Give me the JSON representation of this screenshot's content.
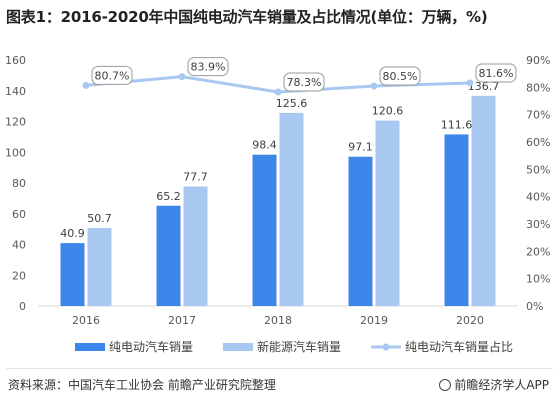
{
  "title": "图表1：2016-2020年中国纯电动汽车销量及占比情况(单位：万辆，%)",
  "chart_data": {
    "type": "bar",
    "categories": [
      "2016",
      "2017",
      "2018",
      "2019",
      "2020"
    ],
    "series": [
      {
        "name": "纯电动汽车销量",
        "kind": "bar",
        "axis": "left",
        "color": "#3b86e8",
        "values": [
          40.9,
          65.2,
          98.4,
          97.1,
          111.6
        ]
      },
      {
        "name": "新能源汽车销量",
        "kind": "bar",
        "axis": "left",
        "color": "#a9c8f1",
        "values": [
          50.7,
          77.7,
          125.6,
          120.6,
          136.7
        ]
      },
      {
        "name": "纯电动汽车销量占比",
        "kind": "line",
        "axis": "right",
        "color": "#a9c8f1",
        "values": [
          80.7,
          83.9,
          78.3,
          80.5,
          81.6
        ],
        "labels": [
          "80.7%",
          "83.9%",
          "78.3%",
          "80.5%",
          "81.6%"
        ]
      }
    ],
    "y_left": {
      "min": 0,
      "max": 160,
      "ticks": [
        "0",
        "20",
        "40",
        "60",
        "80",
        "100",
        "120",
        "140",
        "160"
      ]
    },
    "y_right": {
      "min": 0,
      "max": 90,
      "ticks": [
        "0%",
        "10%",
        "20%",
        "30%",
        "40%",
        "50%",
        "60%",
        "70%",
        "80%",
        "90%"
      ]
    },
    "legend_position": "bottom",
    "grid": false
  },
  "footer": {
    "source": "资料来源：中国汽车工业协会 前瞻产业研究院整理",
    "brand": "前瞻经济学人APP",
    "brand_icon": "brand-logo-icon"
  }
}
